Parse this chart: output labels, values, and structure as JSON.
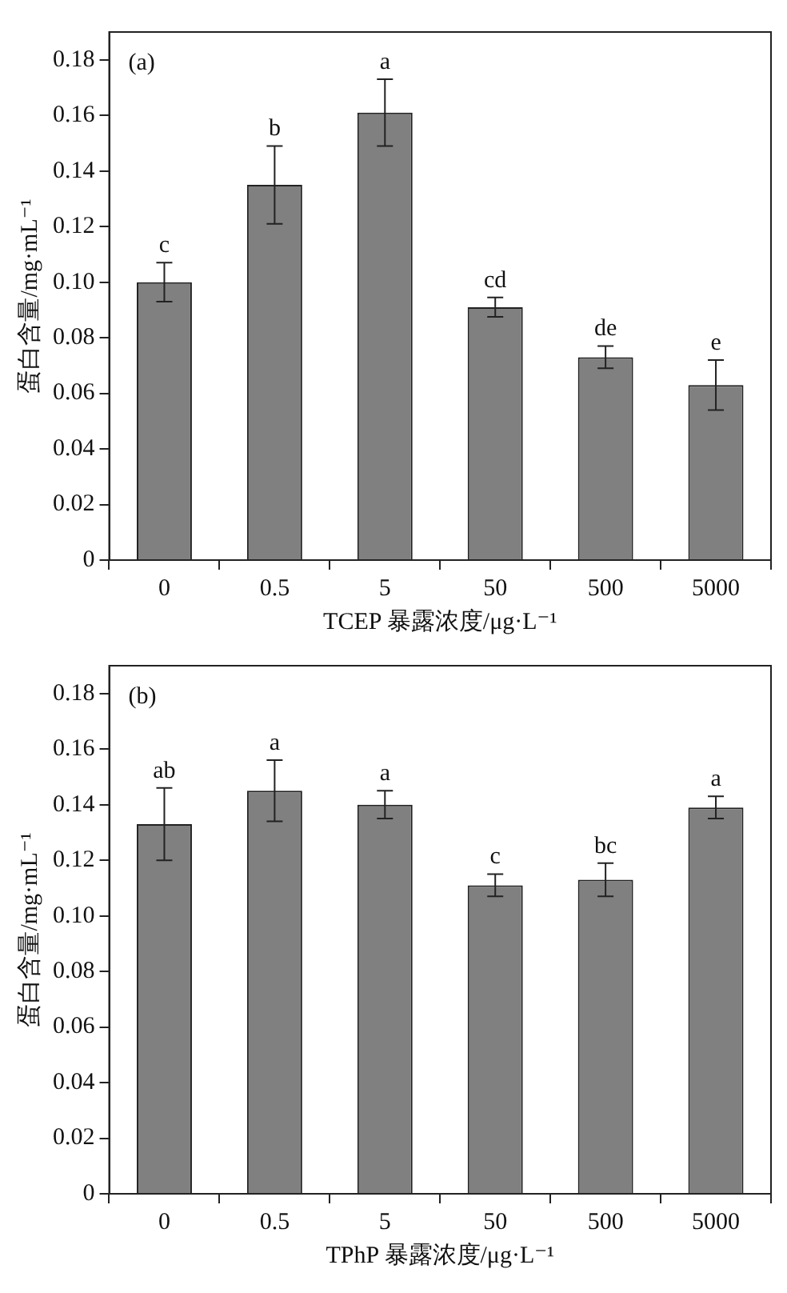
{
  "chart_data": [
    {
      "type": "bar",
      "xlabel": "TCEP 暴露浓度/μg·L⁻¹",
      "ylabel": "蛋白含量/mg·mL⁻¹",
      "categories": [
        "0",
        "0.5",
        "5",
        "50",
        "500",
        "5000"
      ],
      "series": [
        {
          "color": "#808080",
          "values": [
            0.1,
            0.135,
            0.161,
            0.091,
            0.073,
            0.063
          ],
          "errors": [
            0.007,
            0.014,
            0.012,
            0.0035,
            0.004,
            0.009
          ]
        }
      ],
      "ylim": [
        0,
        0.19
      ],
      "yticks": [
        0,
        0.02,
        0.04,
        0.06,
        0.08,
        {
          "value": 0.1,
          "label": "0.10"
        },
        0.12,
        0.14,
        0.16,
        0.18
      ],
      "annotations": [
        "(a)",
        {
          "text": "c",
          "x": "0",
          "y": 0.107
        },
        {
          "text": "b",
          "x": "0.5",
          "y": 0.149
        },
        {
          "text": "a",
          "x": "5",
          "y": 0.173
        },
        {
          "text": "cd",
          "x": "50",
          "y": 0.0945
        },
        {
          "text": "de",
          "x": "500",
          "y": 0.077
        },
        {
          "text": "e",
          "x": "5000",
          "y": 0.072
        }
      ]
    },
    {
      "type": "bar",
      "xlabel": "TPhP 暴露浓度/μg·L⁻¹",
      "ylabel": "蛋白含量/mg·mL⁻¹",
      "categories": [
        "0",
        "0.5",
        "5",
        "50",
        "500",
        "5000"
      ],
      "series": [
        {
          "color": "#808080",
          "values": [
            0.133,
            0.145,
            0.14,
            0.111,
            0.113,
            0.139
          ],
          "errors": [
            0.013,
            0.011,
            0.005,
            0.004,
            0.006,
            0.004
          ]
        }
      ],
      "ylim": [
        0,
        0.19
      ],
      "yticks": [
        0,
        0.02,
        0.04,
        0.06,
        0.08,
        {
          "value": 0.1,
          "label": "0.10"
        },
        0.12,
        0.14,
        0.16,
        0.18
      ],
      "annotations": [
        "(b)",
        {
          "text": "ab",
          "x": "0",
          "y": 0.146
        },
        {
          "text": "a",
          "x": "0.5",
          "y": 0.156
        },
        {
          "text": "a",
          "x": "5",
          "y": 0.145
        },
        {
          "text": "c",
          "x": "50",
          "y": 0.115
        },
        {
          "text": "bc",
          "x": "500",
          "y": 0.119
        },
        {
          "text": "a",
          "x": "5000",
          "y": 0.143
        }
      ]
    }
  ]
}
